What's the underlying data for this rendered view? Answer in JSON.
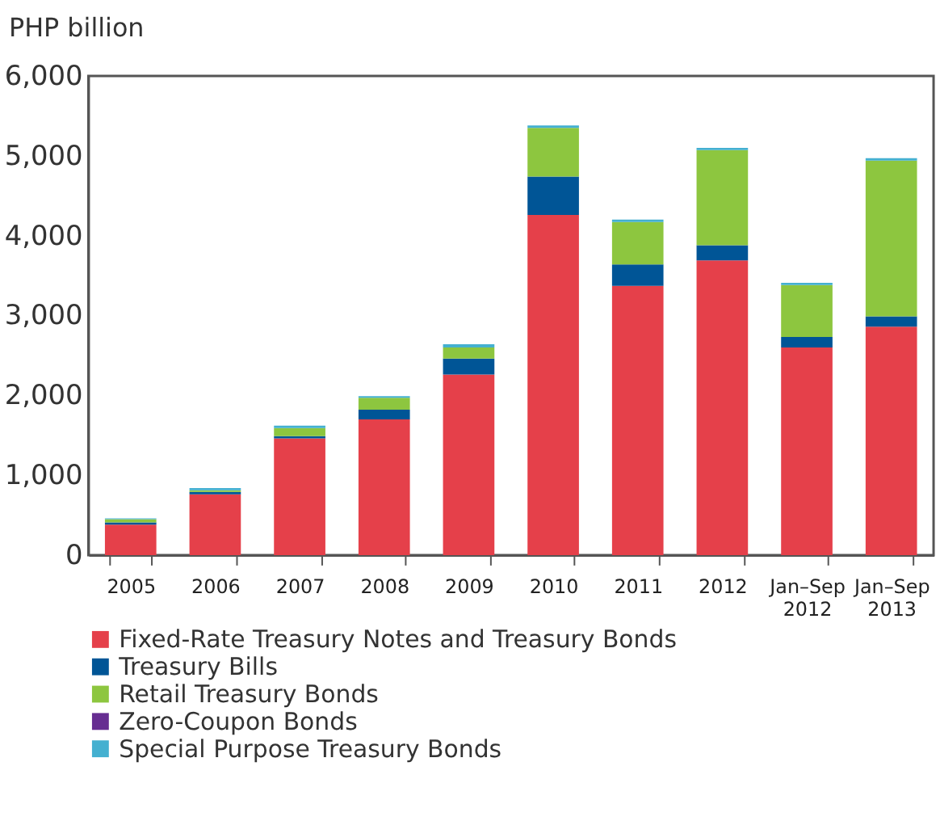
{
  "chart_data": {
    "type": "bar",
    "stacked": true,
    "ylabel": "PHP billion",
    "categories": [
      "2005",
      "2006",
      "2007",
      "2008",
      "2009",
      "2010",
      "2011",
      "2012",
      "Jan–Sep 2012",
      "Jan–Sep 2013"
    ],
    "series": [
      {
        "name": "Fixed-Rate Treasury Notes and Treasury Bonds",
        "color": "#e5404a",
        "values": [
          380,
          760,
          1460,
          1700,
          2260,
          4260,
          3370,
          3690,
          2600,
          2860
        ]
      },
      {
        "name": "Treasury Bills",
        "color": "#005596",
        "values": [
          30,
          30,
          30,
          120,
          200,
          480,
          270,
          190,
          130,
          130
        ]
      },
      {
        "name": "Retail Treasury Bonds",
        "color": "#8dc63f",
        "values": [
          40,
          20,
          100,
          150,
          140,
          610,
          530,
          1190,
          650,
          1950
        ]
      },
      {
        "name": "Zero-Coupon Bonds",
        "color": "#662d91",
        "values": [
          null,
          null,
          null,
          null,
          null,
          null,
          null,
          null,
          null,
          null
        ]
      },
      {
        "name": "Special Purpose Treasury Bonds",
        "color": "#44b0d0",
        "values": [
          10,
          30,
          30,
          20,
          40,
          30,
          30,
          30,
          30,
          30
        ]
      }
    ],
    "ylim": [
      0,
      6000
    ],
    "yticks": [
      0,
      {
        "value": 1000,
        "label": "1,000"
      },
      {
        "value": 2000,
        "label": "2,000"
      },
      {
        "value": 3000,
        "label": "3,000"
      },
      {
        "value": 4000,
        "label": "4,000"
      },
      {
        "value": 5000,
        "label": "5,000"
      },
      {
        "value": 6000,
        "label": "6,000"
      }
    ],
    "grid": false,
    "legend": "bottom"
  }
}
